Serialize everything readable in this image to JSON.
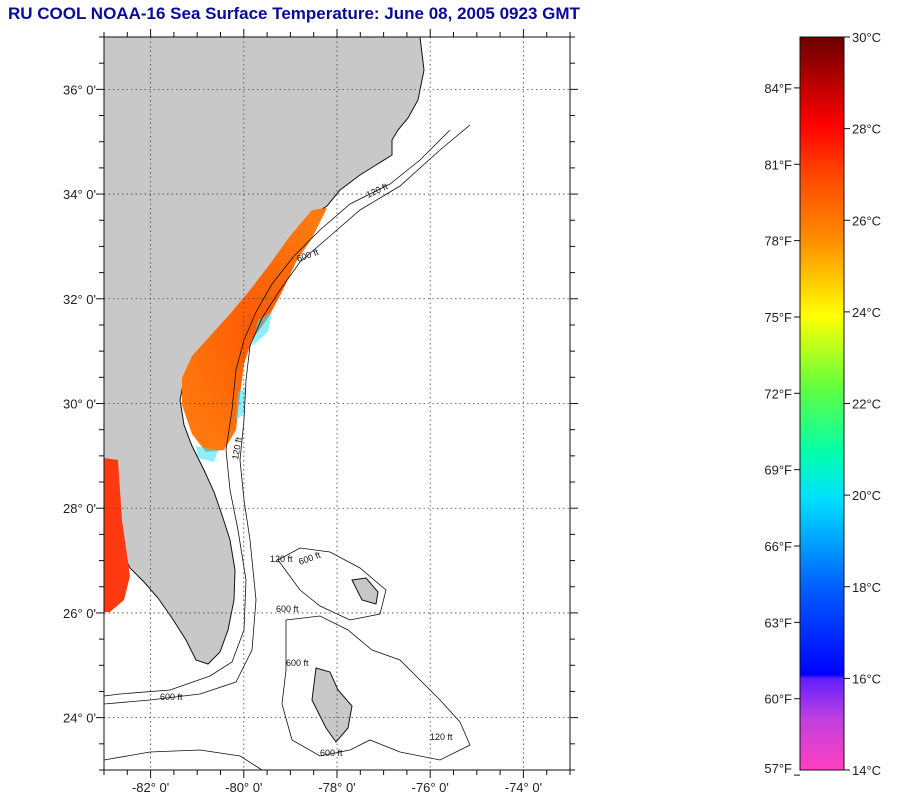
{
  "header": {
    "title": "RU COOL  NOAA-16  Sea Surface Temperature:  June 08, 2005 0923 GMT"
  },
  "map": {
    "lat_labels": [
      "36° 0'",
      "34° 0'",
      "32° 0'",
      "30° 0'",
      "28° 0'",
      "26° 0'",
      "24° 0'"
    ],
    "lon_labels": [
      "-82° 0'",
      "-80° 0'",
      "-78° 0'",
      "-76° 0'",
      "-74° 0'"
    ],
    "lat_values": [
      36,
      34,
      32,
      30,
      28,
      26,
      24
    ],
    "lon_values": [
      -82,
      -80,
      -78,
      -76,
      -74
    ],
    "lat_range": [
      23,
      37
    ],
    "lon_range": [
      -83,
      -73
    ],
    "isobath_labels": [
      "120 ft",
      "600 ft",
      "120 ft",
      "600 ft",
      "600 ft",
      "600 ft",
      "120 ft",
      "600 ft",
      "120 ft",
      "600 ft"
    ],
    "land_color": "#c8c8c8",
    "ocean_color": "#ffffff"
  },
  "colorbar": {
    "celsius_labels": [
      "30°C",
      "28°C",
      "26°C",
      "24°C",
      "22°C",
      "20°C",
      "18°C",
      "16°C",
      "14°C"
    ],
    "celsius_values": [
      30,
      28,
      26,
      24,
      22,
      20,
      18,
      16,
      14
    ],
    "fahrenheit_labels": [
      "84°F",
      "81°F",
      "78°F",
      "75°F",
      "72°F",
      "69°F",
      "66°F",
      "63°F",
      "60°F",
      "57°F"
    ],
    "fahrenheit_values": [
      84,
      81,
      78,
      75,
      72,
      69,
      66,
      63,
      60,
      57
    ],
    "range_c": [
      14,
      30
    ]
  }
}
